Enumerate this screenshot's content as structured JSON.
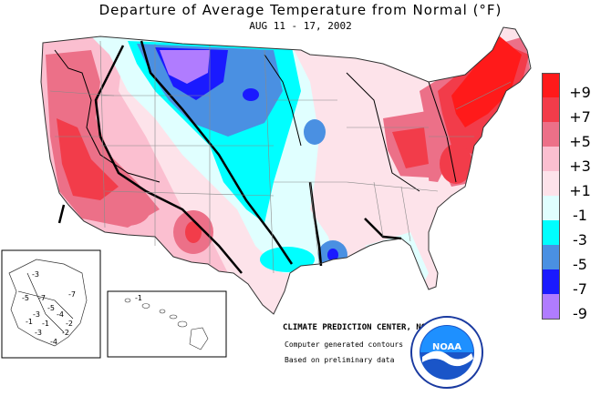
{
  "title": "Departure of Average Temperature from Normal (°F)",
  "subtitle": "AUG 11 - 17, 2002",
  "legend": [
    {
      "label": "+9",
      "color": "#ff1a1a"
    },
    {
      "label": "+7",
      "color": "#f23c4a"
    },
    {
      "label": "+5",
      "color": "#ec7088"
    },
    {
      "label": "+3",
      "color": "#fbbfd0"
    },
    {
      "label": "+1",
      "color": "#fde3ea"
    },
    {
      "label": "-1",
      "color": "#e0ffff"
    },
    {
      "label": "-3",
      "color": "#00ffff"
    },
    {
      "label": "-5",
      "color": "#4a90e2"
    },
    {
      "label": "-7",
      "color": "#1a1aff"
    },
    {
      "label": "-9",
      "color": "#b07cff"
    }
  ],
  "credits": {
    "center": "CLIMATE PREDICTION CENTER, NOAA",
    "contours": "Computer generated contours",
    "basis": "Based on preliminary data"
  },
  "logo": {
    "text": "NOAA",
    "icon": "noaa-logo-icon"
  },
  "alaska_labels": [
    "-3",
    "-5",
    "-7",
    "-5",
    "-4",
    "-3",
    "-2",
    "-1",
    "-1",
    "-2",
    "-3",
    "-4",
    "-7"
  ],
  "hawaii_labels": [
    "-1"
  ]
}
